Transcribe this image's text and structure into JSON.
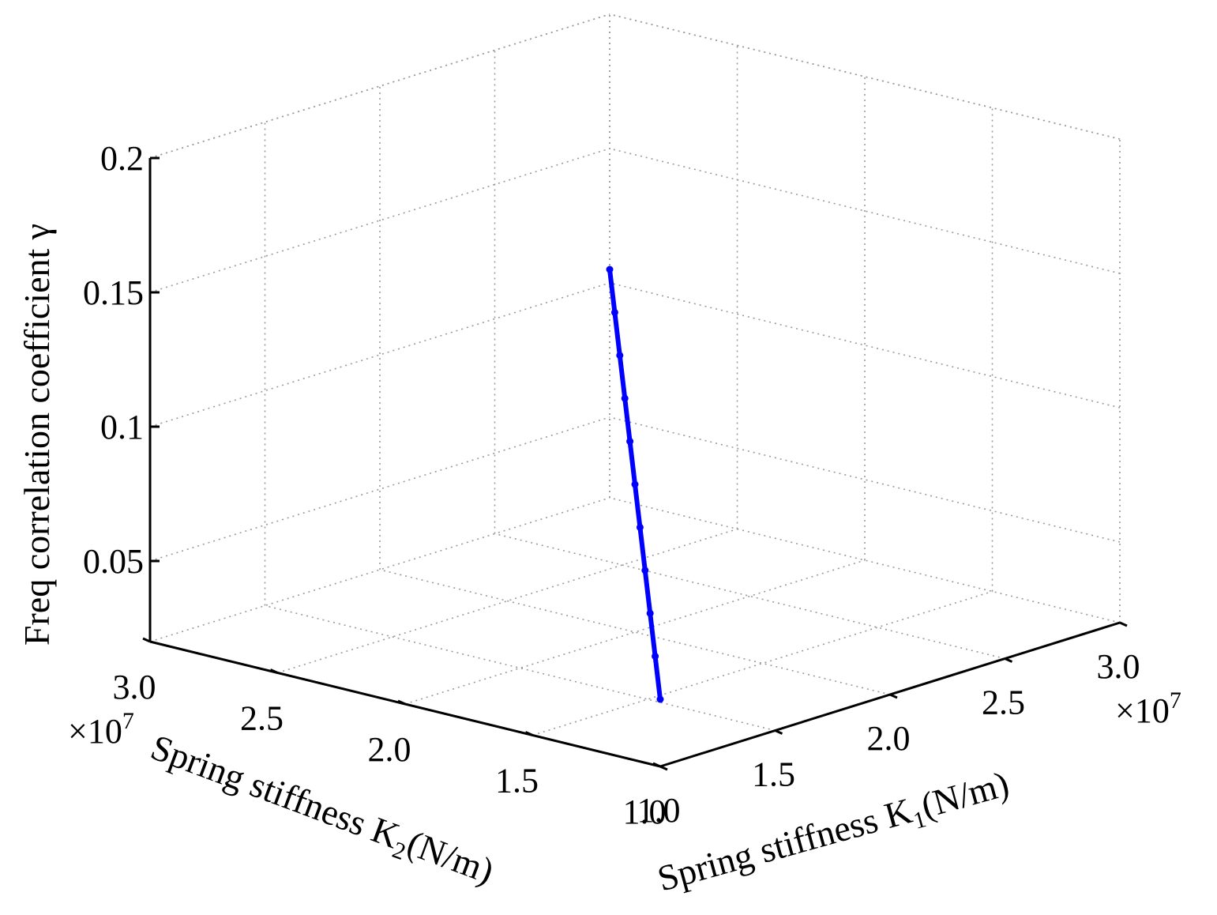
{
  "chart_data": {
    "type": "line",
    "subtype": "3d-line",
    "title": "",
    "x_axis": {
      "label_main": "Spring stiffness K",
      "label_sub": "1",
      "label_unit": "(N/m)",
      "range": [
        1.0,
        3.0
      ],
      "ticks": [
        "1.0",
        "1.5",
        "2.0",
        "2.5",
        "3.0"
      ],
      "multiplier": "×10",
      "multiplier_exp": "7"
    },
    "y_axis": {
      "label_main": "Spring stiffness K",
      "label_sub": "2",
      "label_unit": "(N/m)",
      "range": [
        1.0,
        3.0
      ],
      "ticks": [
        "1.0",
        "1.5",
        "2.0",
        "2.5",
        "3.0"
      ],
      "multiplier": "×10",
      "multiplier_exp": "7"
    },
    "z_axis": {
      "label": "Freq correlation coefficient γ",
      "range": [
        0.02,
        0.2
      ],
      "ticks": [
        "0.05",
        "0.1",
        "0.15",
        "0.2"
      ]
    },
    "grid": true,
    "legend": "none",
    "series": [
      {
        "color": "#0000ff",
        "x": [
          1.0,
          1.2,
          1.4,
          1.6,
          1.8,
          2.0,
          2.2,
          2.4,
          2.6,
          2.8,
          3.0
        ],
        "y": [
          1.0,
          1.2,
          1.4,
          1.6,
          1.8,
          2.0,
          2.2,
          2.4,
          2.6,
          2.8,
          3.0
        ],
        "z": [
          0.045,
          0.051,
          0.057,
          0.063,
          0.069,
          0.075,
          0.081,
          0.087,
          0.093,
          0.099,
          0.105
        ]
      }
    ]
  }
}
